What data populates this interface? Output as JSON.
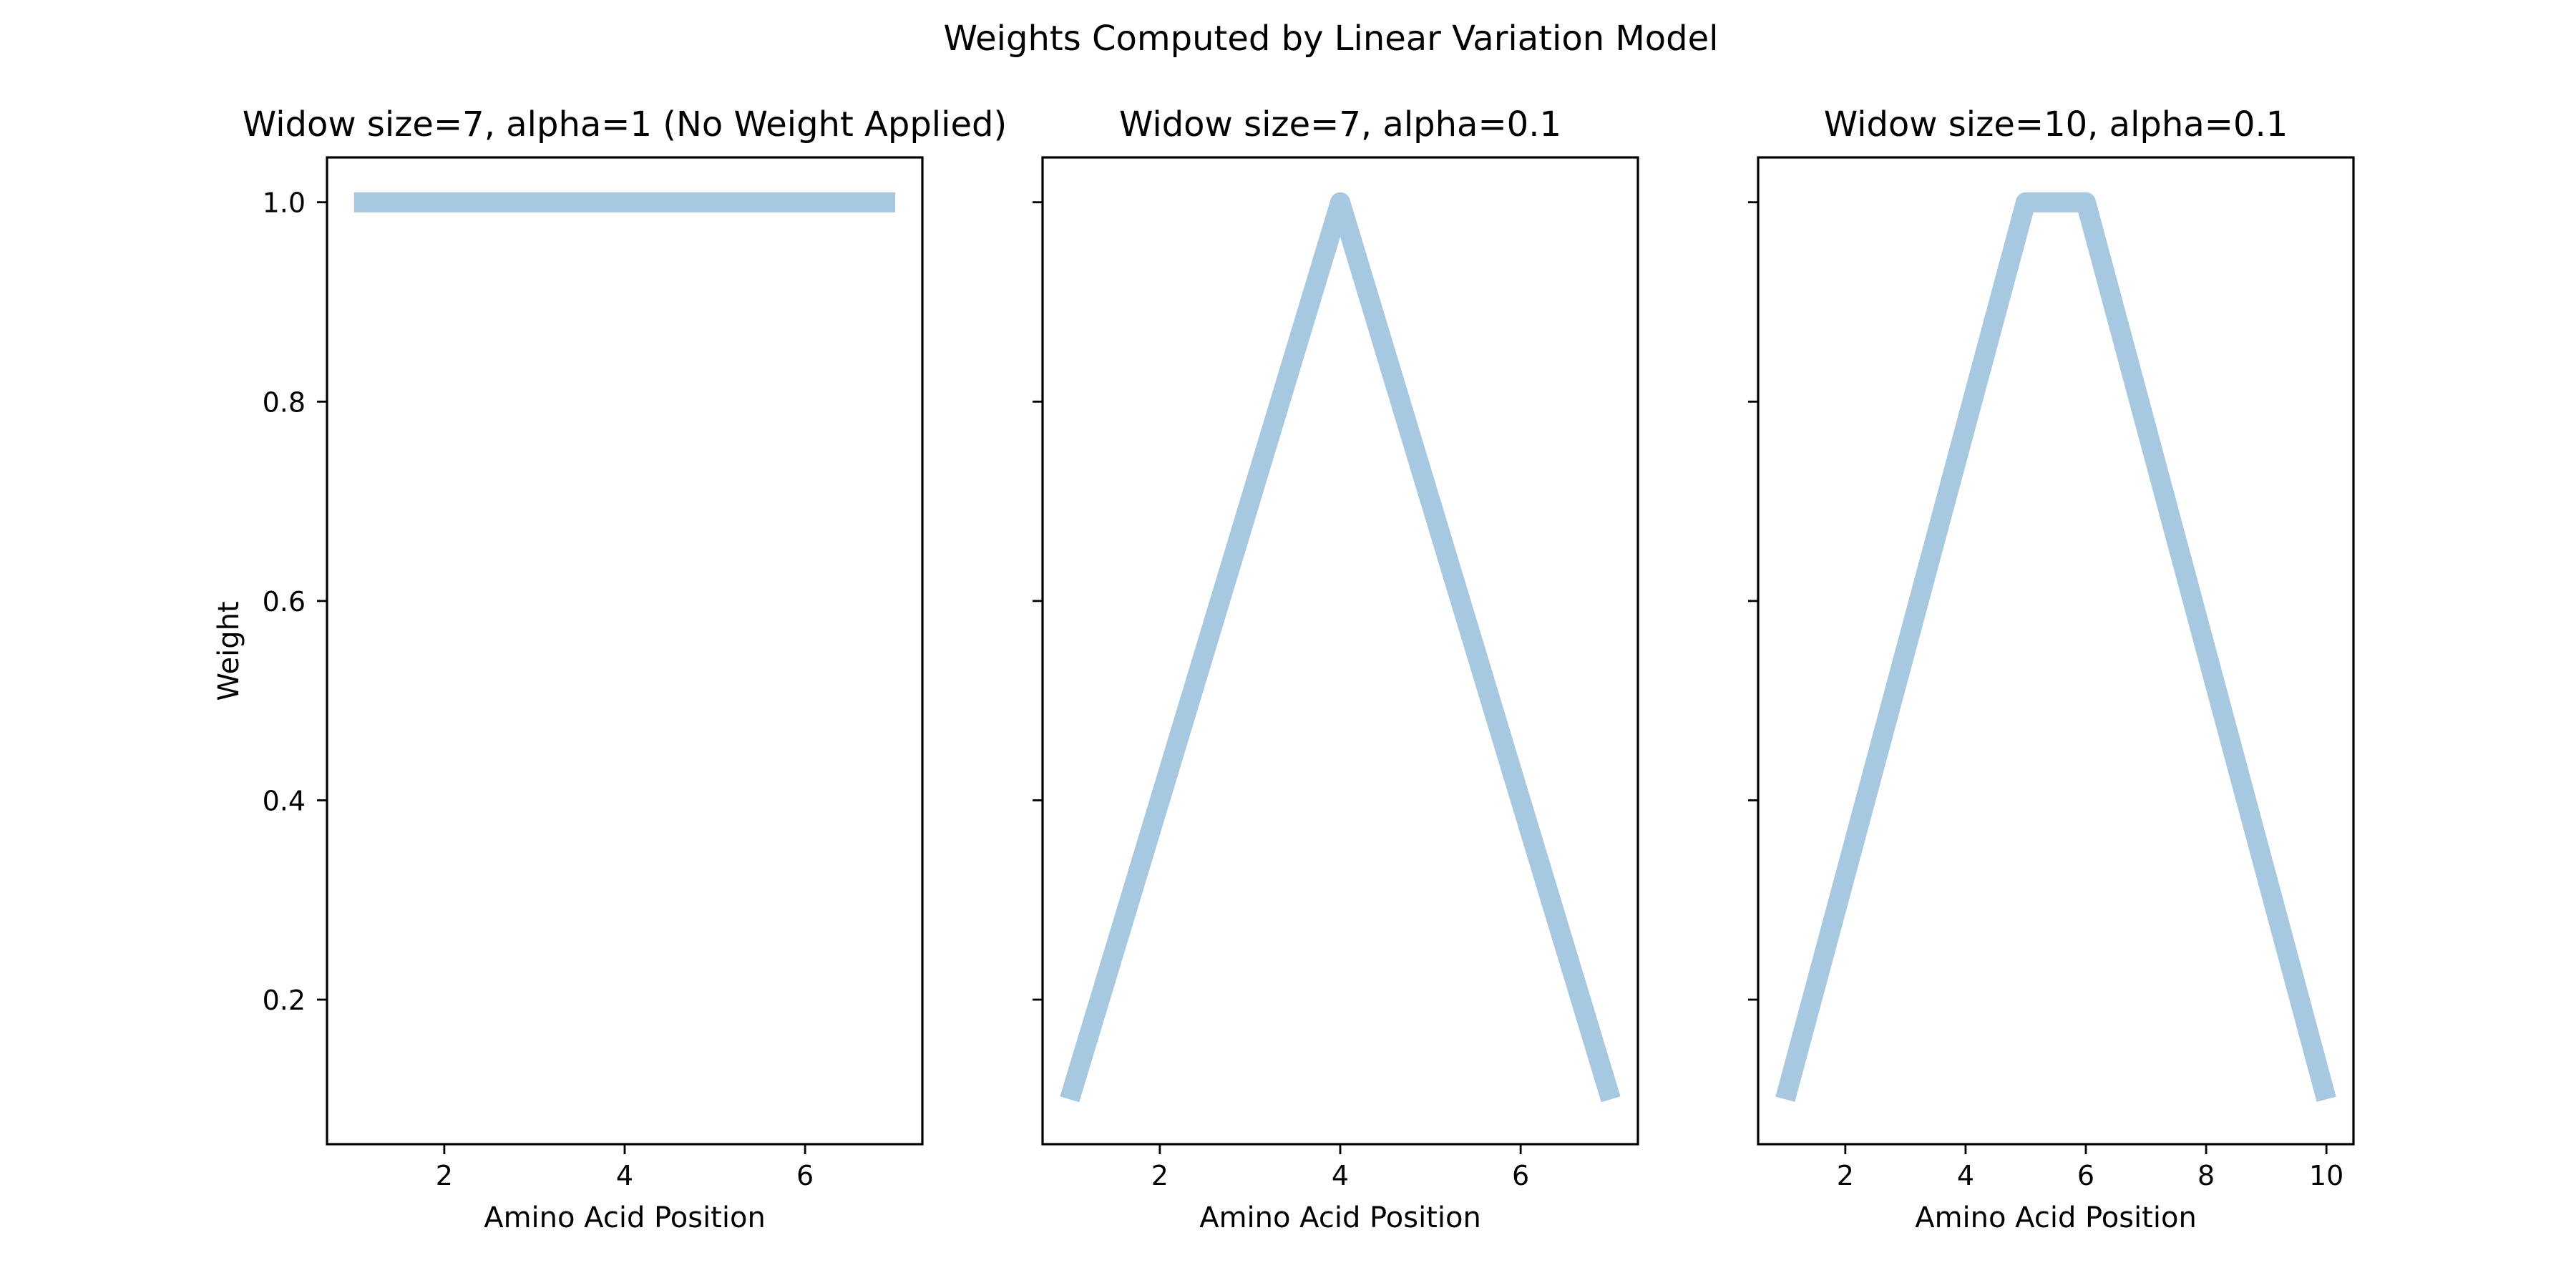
{
  "figure": {
    "title": "Weights Computed by Linear Variation Model"
  },
  "chart_data": [
    {
      "type": "line",
      "title": "Widow size=7, alpha=1 (No Weight Applied)",
      "xlabel": "Amino Acid Position",
      "ylabel": "Weight",
      "xlim": [
        0.7,
        7.3
      ],
      "ylim": [
        0.055,
        1.045
      ],
      "xticks": [
        2,
        4,
        6
      ],
      "yticks": [
        0.2,
        0.4,
        0.6,
        0.8,
        1.0
      ],
      "ytick_labels": [
        "0.2",
        "0.4",
        "0.6",
        "0.8",
        "1.0"
      ],
      "grid": false,
      "line_color": "#a6c8e0",
      "series": [
        {
          "x": [
            1,
            2,
            3,
            4,
            5,
            6,
            7
          ],
          "y": [
            1.0,
            1.0,
            1.0,
            1.0,
            1.0,
            1.0,
            1.0
          ]
        }
      ]
    },
    {
      "type": "line",
      "title": "Widow size=7, alpha=0.1",
      "xlabel": "Amino Acid Position",
      "ylabel": "",
      "xlim": [
        0.7,
        7.3
      ],
      "ylim": [
        0.055,
        1.045
      ],
      "xticks": [
        2,
        4,
        6
      ],
      "yticks": [
        0.2,
        0.4,
        0.6,
        0.8,
        1.0
      ],
      "ytick_labels": [],
      "grid": false,
      "line_color": "#a6c8e0",
      "series": [
        {
          "x": [
            1,
            2,
            3,
            4,
            5,
            6,
            7
          ],
          "y": [
            0.1,
            0.4,
            0.7,
            1.0,
            0.7,
            0.4,
            0.1
          ]
        }
      ]
    },
    {
      "type": "line",
      "title": "Widow size=10, alpha=0.1",
      "xlabel": "Amino Acid Position",
      "ylabel": "",
      "xlim": [
        0.55,
        10.45
      ],
      "ylim": [
        0.055,
        1.045
      ],
      "xticks": [
        2,
        4,
        6,
        8,
        10
      ],
      "yticks": [
        0.2,
        0.4,
        0.6,
        0.8,
        1.0
      ],
      "ytick_labels": [],
      "grid": false,
      "line_color": "#a6c8e0",
      "series": [
        {
          "x": [
            1,
            2,
            3,
            4,
            5,
            6,
            7,
            8,
            9,
            10
          ],
          "y": [
            0.1,
            0.325,
            0.55,
            0.775,
            1.0,
            1.0,
            0.775,
            0.55,
            0.325,
            0.1
          ]
        }
      ]
    }
  ]
}
